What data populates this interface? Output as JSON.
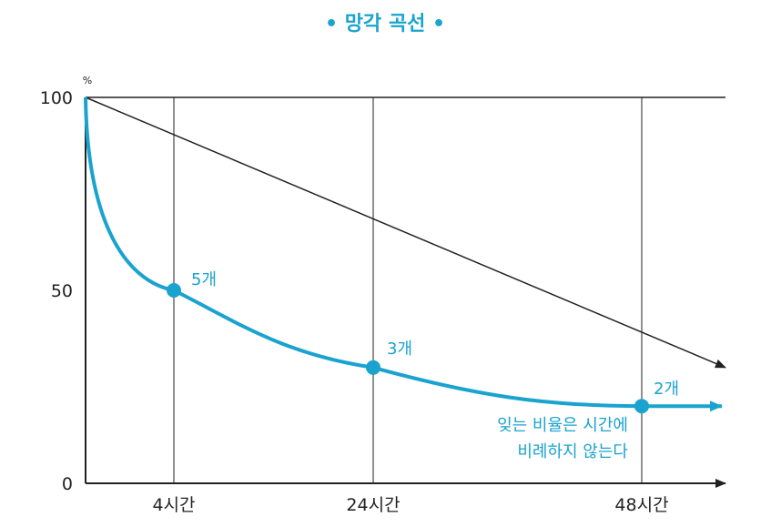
{
  "chart_data": {
    "type": "line",
    "title": "• 망각 곡선 •",
    "y_unit": "%",
    "ylim": [
      0,
      100
    ],
    "y_ticks": [
      "0",
      "50",
      "100"
    ],
    "x_ticks": [
      "4시간",
      "24시간",
      "48시간"
    ],
    "colors": {
      "curve": "#1aa3cf",
      "axis": "#222222"
    },
    "points": [
      {
        "x": "4시간",
        "y": 50,
        "label": "5개"
      },
      {
        "x": "24시간",
        "y": 30,
        "label": "3개"
      },
      {
        "x": "48시간",
        "y": 20,
        "label": "2개"
      }
    ],
    "annotation_lines": [
      "잊는 비율은 시간에",
      "비례하지 않는다"
    ],
    "reference_line": {
      "from": 100,
      "to": 30
    }
  }
}
